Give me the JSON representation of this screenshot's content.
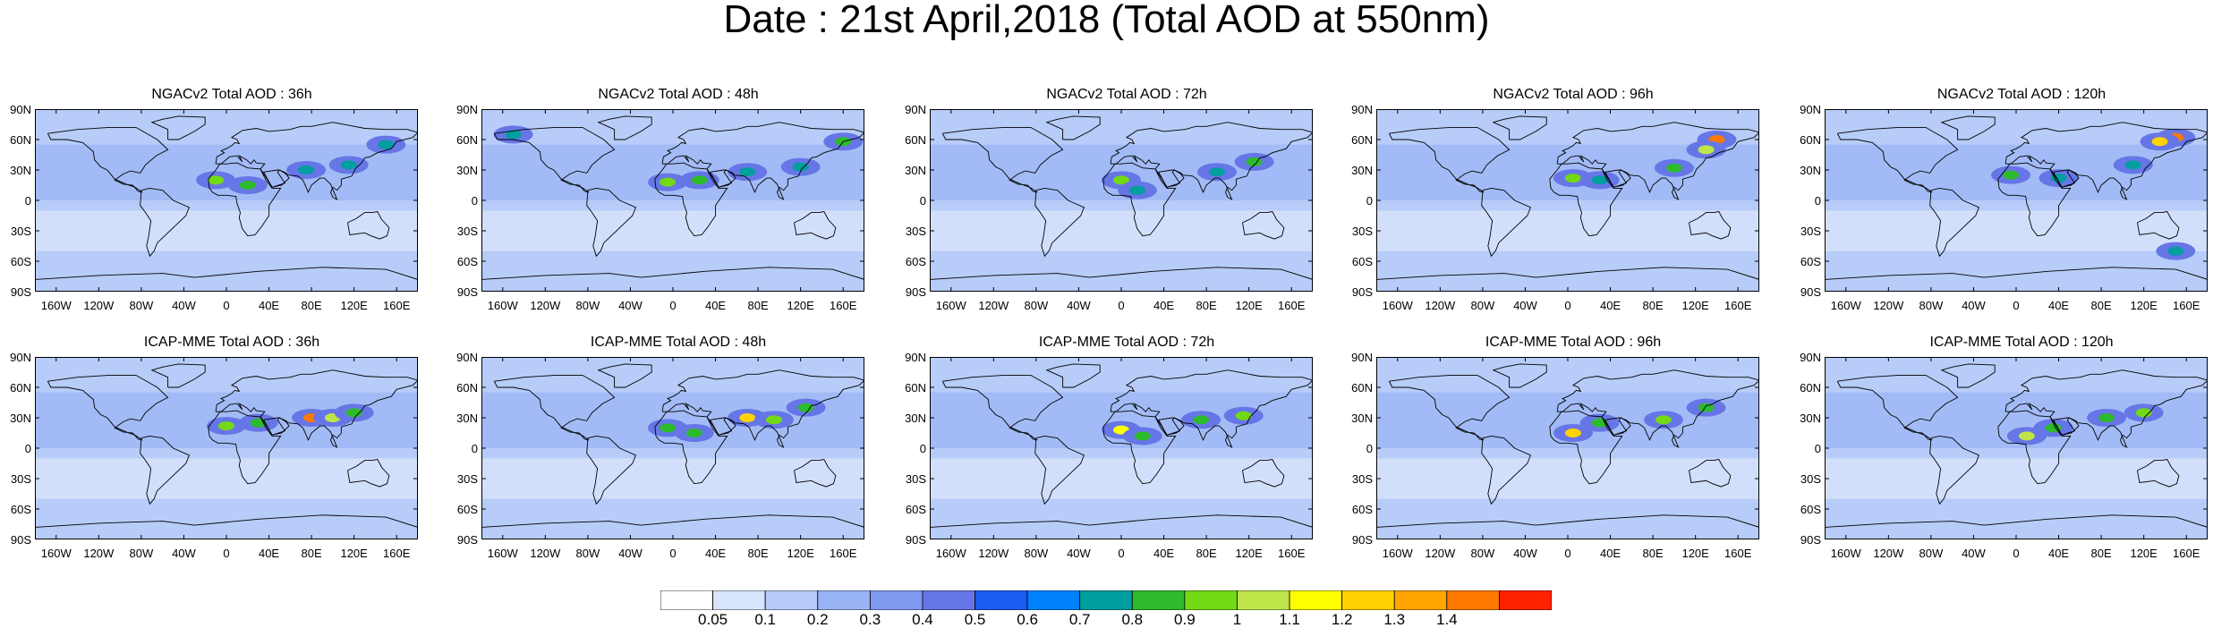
{
  "title": "Date : 21st April,2018 (Total AOD at 550nm)",
  "icons": {
    "map": "world-map-icon"
  },
  "rows": [
    {
      "model": "NGACv2",
      "panels": [
        {
          "title": "NGACv2 Total AOD : 36h",
          "hotspots": [
            [
              -10,
              20,
              0.9
            ],
            [
              20,
              15,
              0.8
            ],
            [
              75,
              30,
              0.7
            ],
            [
              115,
              35,
              0.7
            ],
            [
              150,
              55,
              0.7
            ]
          ]
        },
        {
          "title": "NGACv2 Total AOD : 48h",
          "hotspots": [
            [
              -5,
              18,
              0.9
            ],
            [
              25,
              20,
              0.8
            ],
            [
              70,
              28,
              0.7
            ],
            [
              120,
              33,
              0.7
            ],
            [
              160,
              58,
              0.8
            ],
            [
              -150,
              65,
              0.7
            ]
          ]
        },
        {
          "title": "NGACv2 Total AOD : 72h",
          "hotspots": [
            [
              0,
              20,
              0.9
            ],
            [
              15,
              10,
              0.7
            ],
            [
              90,
              28,
              0.7
            ],
            [
              125,
              38,
              0.8
            ]
          ]
        },
        {
          "title": "NGACv2 Total AOD : 96h",
          "hotspots": [
            [
              5,
              22,
              0.9
            ],
            [
              30,
              20,
              0.7
            ],
            [
              100,
              32,
              0.8
            ],
            [
              140,
              60,
              1.4
            ],
            [
              130,
              50,
              1.0
            ]
          ]
        },
        {
          "title": "NGACv2 Total AOD : 120h",
          "hotspots": [
            [
              -5,
              25,
              0.8
            ],
            [
              40,
              22,
              0.7
            ],
            [
              110,
              35,
              0.7
            ],
            [
              150,
              62,
              1.4
            ],
            [
              135,
              58,
              1.2
            ],
            [
              150,
              -50,
              0.7
            ]
          ]
        }
      ]
    },
    {
      "model": "ICAP-MME",
      "panels": [
        {
          "title": "ICAP-MME Total AOD : 36h",
          "hotspots": [
            [
              0,
              22,
              0.9
            ],
            [
              30,
              25,
              0.8
            ],
            [
              80,
              30,
              1.4
            ],
            [
              100,
              30,
              1.0
            ],
            [
              120,
              35,
              0.8
            ]
          ]
        },
        {
          "title": "ICAP-MME Total AOD : 48h",
          "hotspots": [
            [
              -5,
              20,
              0.8
            ],
            [
              20,
              15,
              0.8
            ],
            [
              70,
              30,
              1.2
            ],
            [
              95,
              28,
              0.9
            ],
            [
              125,
              40,
              0.8
            ]
          ]
        },
        {
          "title": "ICAP-MME Total AOD : 72h",
          "hotspots": [
            [
              0,
              18,
              1.1
            ],
            [
              20,
              12,
              0.8
            ],
            [
              75,
              28,
              0.8
            ],
            [
              115,
              32,
              0.9
            ]
          ]
        },
        {
          "title": "ICAP-MME Total AOD : 96h",
          "hotspots": [
            [
              5,
              15,
              1.2
            ],
            [
              30,
              25,
              0.8
            ],
            [
              90,
              28,
              0.9
            ],
            [
              130,
              40,
              0.8
            ]
          ]
        },
        {
          "title": "ICAP-MME Total AOD : 120h",
          "hotspots": [
            [
              10,
              12,
              1.0
            ],
            [
              35,
              20,
              0.8
            ],
            [
              85,
              30,
              0.8
            ],
            [
              120,
              35,
              0.9
            ]
          ]
        }
      ]
    }
  ],
  "axes": {
    "lat_labels": [
      "90N",
      "60N",
      "30N",
      "0",
      "30S",
      "60S",
      "90S"
    ],
    "lat_values": [
      90,
      60,
      30,
      0,
      -30,
      -60,
      -90
    ],
    "lon_labels": [
      "160W",
      "120W",
      "80W",
      "40W",
      "0",
      "40E",
      "80E",
      "120E",
      "160E"
    ],
    "lon_values": [
      -160,
      -120,
      -80,
      -40,
      0,
      40,
      80,
      120,
      160
    ],
    "lon_range": [
      -180,
      180
    ],
    "lat_range": [
      -90,
      90
    ]
  },
  "colorbar": {
    "colors": [
      "#ffffff",
      "#d8e4fb",
      "#b7ccf8",
      "#98b4f5",
      "#7e99f0",
      "#6676e6",
      "#1c5bf0",
      "#0082ff",
      "#009e9e",
      "#2dbb2d",
      "#72d914",
      "#bfe54a",
      "#ffff00",
      "#ffd200",
      "#ffa500",
      "#ff7800",
      "#ff2200"
    ],
    "labels": [
      "0.05",
      "0.1",
      "0.2",
      "0.3",
      "0.4",
      "0.5",
      "0.6",
      "0.7",
      "0.8",
      "0.9",
      "1",
      "1.1",
      "1.2",
      "1.3",
      "1.4"
    ],
    "thresholds": [
      0.05,
      0.1,
      0.2,
      0.3,
      0.4,
      0.5,
      0.6,
      0.7,
      0.8,
      0.9,
      1,
      1.1,
      1.2,
      1.3,
      1.4
    ]
  }
}
